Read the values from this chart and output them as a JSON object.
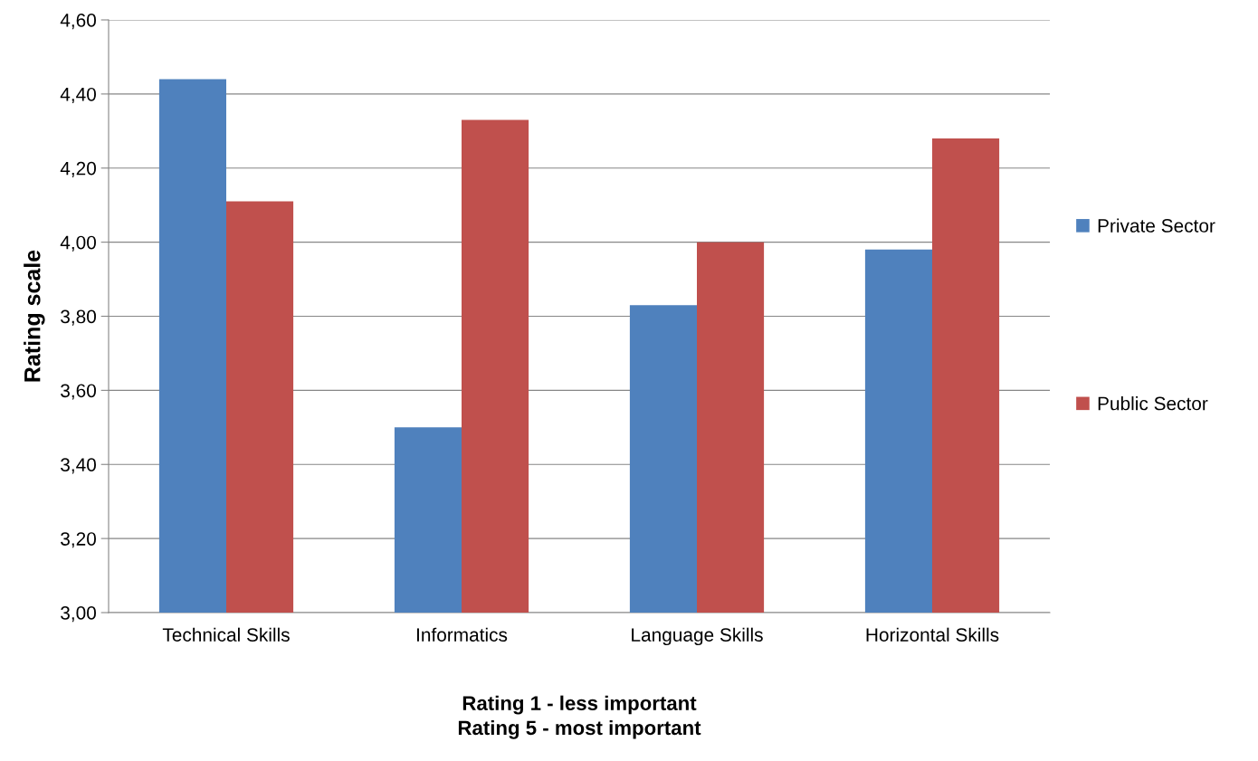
{
  "chart_data": {
    "type": "bar",
    "categories": [
      "Technical Skills",
      "Informatics",
      "Language Skills",
      "Horizontal Skills"
    ],
    "series": [
      {
        "name": "Private Sector",
        "color": "#4f81bd",
        "values": [
          4.44,
          3.5,
          3.83,
          3.98
        ]
      },
      {
        "name": "Public Sector",
        "color": "#c0504d",
        "values": [
          4.11,
          4.33,
          4.0,
          4.28
        ]
      }
    ],
    "ylabel": "Rating scale",
    "xlabel": "Rating 1 - less important\nRating 5 - most important",
    "ylim": [
      3.0,
      4.6
    ],
    "yticks": [
      {
        "value": 3.0,
        "label": "3,00"
      },
      {
        "value": 3.2,
        "label": "3,20"
      },
      {
        "value": 3.4,
        "label": "3,40"
      },
      {
        "value": 3.6,
        "label": "3,60"
      },
      {
        "value": 3.8,
        "label": "3,80"
      },
      {
        "value": 4.0,
        "label": "4,00"
      },
      {
        "value": 4.2,
        "label": "4,20"
      },
      {
        "value": 4.4,
        "label": "4,40"
      },
      {
        "value": 4.6,
        "label": "4,60"
      }
    ],
    "grid": "y",
    "legend": "right"
  }
}
